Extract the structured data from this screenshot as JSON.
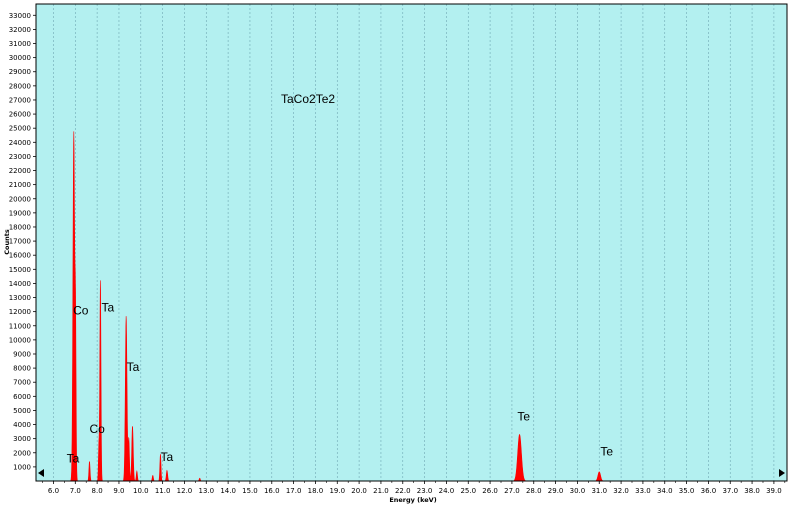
{
  "chart_data": {
    "type": "area",
    "title": "TaCo2Te2",
    "xlabel": "Energy (keV)",
    "ylabel": "Counts",
    "xlim": [
      5.2,
      39.6
    ],
    "ylim": [
      0,
      33800
    ],
    "grid": "vertical dotted",
    "colors": {
      "plot_bg": "#b3f0f0",
      "fill": "#ff0000",
      "grid": "#6fa8b3",
      "frame": "#000000"
    },
    "x_ticks": [
      "6.0",
      "7.0",
      "8.0",
      "9.0",
      "10.0",
      "11.0",
      "12.0",
      "13.0",
      "14.0",
      "15.0",
      "16.0",
      "17.0",
      "18.0",
      "19.0",
      "20.0",
      "21.0",
      "22.0",
      "23.0",
      "24.0",
      "25.0",
      "26.0",
      "27.0",
      "28.0",
      "29.0",
      "30.0",
      "31.0",
      "32.0",
      "33.0",
      "34.0",
      "35.0",
      "36.0",
      "37.0",
      "38.0",
      "39.0"
    ],
    "y_ticks": [
      "1000",
      "2000",
      "3000",
      "4000",
      "5000",
      "6000",
      "7000",
      "8000",
      "9000",
      "10000",
      "11000",
      "12000",
      "13000",
      "14000",
      "15000",
      "16000",
      "17000",
      "18000",
      "19000",
      "20000",
      "21000",
      "22000",
      "23000",
      "24000",
      "25000",
      "26000",
      "27000",
      "28000",
      "29000",
      "30000",
      "31000",
      "32000",
      "33000"
    ],
    "peaks": [
      {
        "energy": 6.93,
        "counts": 24700,
        "width": 0.09
      },
      {
        "energy": 7.01,
        "counts": 11000,
        "width": 0.06
      },
      {
        "energy": 7.65,
        "counts": 1400,
        "width": 0.06
      },
      {
        "energy": 8.15,
        "counts": 14300,
        "width": 0.06
      },
      {
        "energy": 8.08,
        "counts": 2500,
        "width": 0.05
      },
      {
        "energy": 9.33,
        "counts": 11700,
        "width": 0.09
      },
      {
        "energy": 9.45,
        "counts": 3000,
        "width": 0.07
      },
      {
        "energy": 9.62,
        "counts": 3900,
        "width": 0.08
      },
      {
        "energy": 9.82,
        "counts": 700,
        "width": 0.06
      },
      {
        "energy": 10.55,
        "counts": 400,
        "width": 0.06
      },
      {
        "energy": 10.9,
        "counts": 1900,
        "width": 0.06
      },
      {
        "energy": 11.2,
        "counts": 750,
        "width": 0.07
      },
      {
        "energy": 12.7,
        "counts": 200,
        "width": 0.06
      },
      {
        "energy": 27.35,
        "counts": 3300,
        "width": 0.2
      },
      {
        "energy": 31.0,
        "counts": 650,
        "width": 0.14
      }
    ],
    "annotations": [
      {
        "text": "Ta",
        "x": 6.6,
        "y": 1300
      },
      {
        "text": "Co",
        "x": 6.9,
        "y": 11800
      },
      {
        "text": "Co",
        "x": 7.65,
        "y": 3400
      },
      {
        "text": "Ta",
        "x": 8.2,
        "y": 12000
      },
      {
        "text": "Ta",
        "x": 9.35,
        "y": 7800
      },
      {
        "text": "Ta",
        "x": 10.9,
        "y": 1400
      },
      {
        "text": "Te",
        "x": 27.25,
        "y": 4300
      },
      {
        "text": "Te",
        "x": 31.05,
        "y": 1800
      }
    ]
  }
}
